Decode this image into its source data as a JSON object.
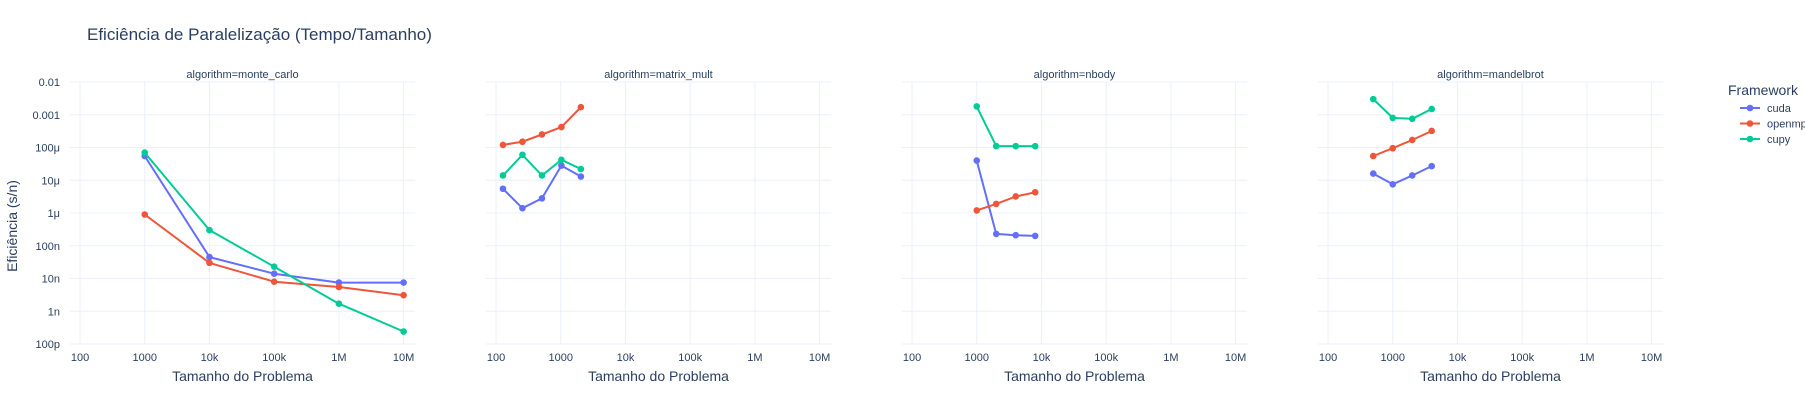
{
  "chart_data": {
    "type": "line",
    "title": "Eficiência de Paralelização (Tempo/Tamanho)",
    "xlabel": "Tamanho do Problema",
    "ylabel": "Eficiência (s/n)",
    "x_scale": "log",
    "y_scale": "log",
    "xlim": [
      70,
      15000000
    ],
    "ylim": [
      1e-10,
      0.01
    ],
    "x_ticks": [
      100,
      1000,
      10000,
      100000,
      1000000,
      10000000
    ],
    "x_tick_labels": [
      "100",
      "1000",
      "10k",
      "100k",
      "1M",
      "10M"
    ],
    "y_ticks": [
      1e-10,
      1e-09,
      1e-08,
      1e-07,
      1e-06,
      1e-05,
      0.0001,
      0.001,
      0.01
    ],
    "y_tick_labels": [
      "100p",
      "1n",
      "10n",
      "100n",
      "1μ",
      "10μ",
      "100μ",
      "0.001",
      "0.01"
    ],
    "grid": true,
    "legend": {
      "title": "Framework",
      "position": "top-right",
      "entries": [
        {
          "name": "cuda",
          "color": "#636efa"
        },
        {
          "name": "openmp",
          "color": "#ef553b"
        },
        {
          "name": "cupy",
          "color": "#00cc96"
        }
      ]
    },
    "panels": [
      {
        "label": "algorithm=monte_carlo",
        "series": [
          {
            "name": "cuda",
            "x": [
              1000,
              10000,
              100000,
              1000000,
              10000000
            ],
            "y": [
              5.5e-05,
              4.5e-08,
              1.4e-08,
              7.5e-09,
              7.5e-09
            ]
          },
          {
            "name": "openmp",
            "x": [
              1000,
              10000,
              100000,
              1000000,
              10000000
            ],
            "y": [
              9e-07,
              3e-08,
              8e-09,
              5.5e-09,
              3.1e-09
            ]
          },
          {
            "name": "cupy",
            "x": [
              1000,
              10000,
              100000,
              1000000,
              10000000
            ],
            "y": [
              7e-05,
              3e-07,
              2.3e-08,
              1.7e-09,
              2.4e-10
            ]
          }
        ]
      },
      {
        "label": "algorithm=matrix_mult",
        "series": [
          {
            "name": "cuda",
            "x": [
              128,
              256,
              512,
              1024,
              2048
            ],
            "y": [
              5.5e-06,
              1.4e-06,
              2.8e-06,
              2.8e-05,
              1.3e-05
            ]
          },
          {
            "name": "openmp",
            "x": [
              128,
              256,
              512,
              1024,
              2048
            ],
            "y": [
              0.00012,
              0.00015,
              0.00025,
              0.00042,
              0.0017
            ]
          },
          {
            "name": "cupy",
            "x": [
              128,
              256,
              512,
              1024,
              2048
            ],
            "y": [
              1.4e-05,
              6e-05,
              1.4e-05,
              4.2e-05,
              2.2e-05
            ]
          }
        ]
      },
      {
        "label": "algorithm=nbody",
        "series": [
          {
            "name": "cuda",
            "x": [
              1000,
              2000,
              4000,
              8000
            ],
            "y": [
              4e-05,
              2.3e-07,
              2.1e-07,
              2e-07
            ]
          },
          {
            "name": "openmp",
            "x": [
              1000,
              2000,
              4000,
              8000
            ],
            "y": [
              1.2e-06,
              1.9e-06,
              3.2e-06,
              4.3e-06
            ]
          },
          {
            "name": "cupy",
            "x": [
              1000,
              2000,
              4000,
              8000
            ],
            "y": [
              0.0018,
              0.00011,
              0.00011,
              0.00011
            ]
          }
        ]
      },
      {
        "label": "algorithm=mandelbrot",
        "series": [
          {
            "name": "cuda",
            "x": [
              500,
              1000,
              2000,
              4000
            ],
            "y": [
              1.6e-05,
              7.5e-06,
              1.4e-05,
              2.7e-05
            ]
          },
          {
            "name": "openmp",
            "x": [
              500,
              1000,
              2000,
              4000
            ],
            "y": [
              5.5e-05,
              9.5e-05,
              0.00017,
              0.00032
            ]
          },
          {
            "name": "cupy",
            "x": [
              500,
              1000,
              2000,
              4000
            ],
            "y": [
              0.003,
              0.0008,
              0.00075,
              0.0015
            ]
          }
        ]
      }
    ]
  }
}
